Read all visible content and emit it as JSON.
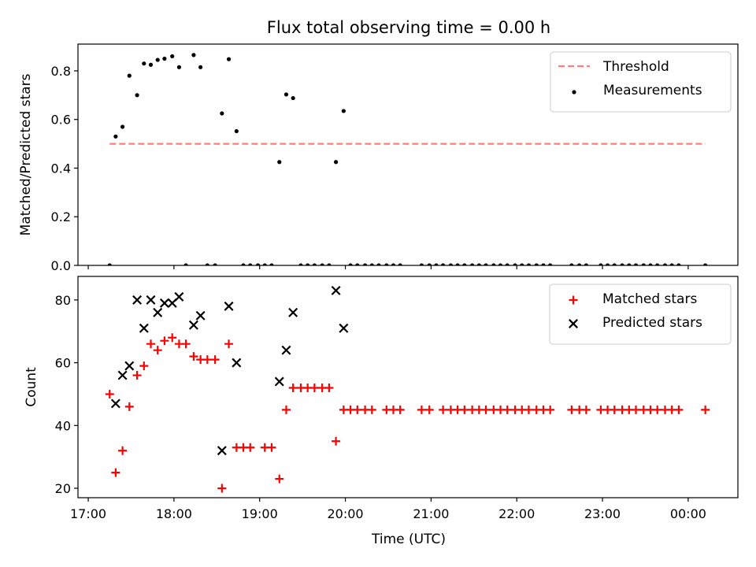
{
  "chart_data": {
    "title": "Flux total observing time = 0.00 h",
    "xlabel": "Time (UTC)",
    "x_unit": "hours since 17:00 UTC",
    "xlim": [
      -0.12,
      7.58
    ],
    "xticks": [
      {
        "v": 0,
        "label": "17:00"
      },
      {
        "v": 1,
        "label": "18:00"
      },
      {
        "v": 2,
        "label": "19:00"
      },
      {
        "v": 3,
        "label": "20:00"
      },
      {
        "v": 4,
        "label": "21:00"
      },
      {
        "v": 5,
        "label": "22:00"
      },
      {
        "v": 6,
        "label": "23:00"
      },
      {
        "v": 7,
        "label": "00:00"
      }
    ],
    "panels": [
      {
        "id": "ratio",
        "type": "scatter",
        "ylabel": "Matched/Predicted stars",
        "ylim": [
          0,
          0.91
        ],
        "yticks": [
          {
            "v": 0,
            "label": "0.0"
          },
          {
            "v": 0.2,
            "label": "0.2"
          },
          {
            "v": 0.4,
            "label": "0.4"
          },
          {
            "v": 0.6,
            "label": "0.6"
          },
          {
            "v": 0.8,
            "label": "0.8"
          }
        ],
        "legend": [
          "Threshold",
          "Measurements"
        ],
        "legend_loc": "upper right",
        "threshold": {
          "name": "Threshold",
          "y": 0.5,
          "x": [
            0.25,
            7.2
          ],
          "color": "#ff7f7f"
        },
        "series": [
          {
            "name": "Measurements",
            "marker": "dot",
            "color": "#000000",
            "points": [
              [
                0.25,
                0.0
              ],
              [
                0.32,
                0.53
              ],
              [
                0.4,
                0.57
              ],
              [
                0.48,
                0.78
              ],
              [
                0.57,
                0.7
              ],
              [
                0.65,
                0.83
              ],
              [
                0.73,
                0.825
              ],
              [
                0.81,
                0.845
              ],
              [
                0.89,
                0.85
              ],
              [
                0.98,
                0.86
              ],
              [
                1.06,
                0.815
              ],
              [
                1.14,
                0.0
              ],
              [
                1.23,
                0.865
              ],
              [
                1.31,
                0.815
              ],
              [
                1.39,
                0.0
              ],
              [
                1.48,
                0.0
              ],
              [
                1.56,
                0.625
              ],
              [
                1.64,
                0.848
              ],
              [
                1.73,
                0.552
              ],
              [
                1.81,
                0.0
              ],
              [
                1.89,
                0.0
              ],
              [
                1.98,
                0.0
              ],
              [
                2.06,
                0.0
              ],
              [
                2.14,
                0.0
              ],
              [
                2.23,
                0.425
              ],
              [
                2.31,
                0.703
              ],
              [
                2.39,
                0.688
              ],
              [
                2.48,
                0.0
              ],
              [
                2.56,
                0.0
              ],
              [
                2.64,
                0.0
              ],
              [
                2.73,
                0.0
              ],
              [
                2.81,
                0.0
              ],
              [
                2.89,
                0.425
              ],
              [
                2.98,
                0.635
              ],
              [
                3.06,
                0.0
              ],
              [
                3.14,
                0.0
              ],
              [
                3.23,
                0.0
              ],
              [
                3.31,
                0.0
              ],
              [
                3.39,
                0.0
              ],
              [
                3.48,
                0.0
              ],
              [
                3.56,
                0.0
              ],
              [
                3.64,
                0.0
              ],
              [
                3.89,
                0.0
              ],
              [
                3.98,
                0.0
              ],
              [
                4.06,
                0.0
              ],
              [
                4.14,
                0.0
              ],
              [
                4.23,
                0.0
              ],
              [
                4.31,
                0.0
              ],
              [
                4.39,
                0.0
              ],
              [
                4.48,
                0.0
              ],
              [
                4.56,
                0.0
              ],
              [
                4.64,
                0.0
              ],
              [
                4.73,
                0.0
              ],
              [
                4.81,
                0.0
              ],
              [
                4.89,
                0.0
              ],
              [
                4.98,
                0.0
              ],
              [
                5.06,
                0.0
              ],
              [
                5.14,
                0.0
              ],
              [
                5.23,
                0.0
              ],
              [
                5.31,
                0.0
              ],
              [
                5.39,
                0.0
              ],
              [
                5.64,
                0.0
              ],
              [
                5.73,
                0.0
              ],
              [
                5.81,
                0.0
              ],
              [
                5.98,
                0.0
              ],
              [
                6.06,
                0.0
              ],
              [
                6.14,
                0.0
              ],
              [
                6.23,
                0.0
              ],
              [
                6.31,
                0.0
              ],
              [
                6.39,
                0.0
              ],
              [
                6.48,
                0.0
              ],
              [
                6.56,
                0.0
              ],
              [
                6.64,
                0.0
              ],
              [
                6.73,
                0.0
              ],
              [
                6.81,
                0.0
              ],
              [
                6.89,
                0.0
              ],
              [
                7.2,
                0.0
              ]
            ]
          }
        ]
      },
      {
        "id": "counts",
        "type": "scatter",
        "ylabel": "Count",
        "ylim": [
          17,
          87.5
        ],
        "yticks": [
          {
            "v": 20,
            "label": "20"
          },
          {
            "v": 40,
            "label": "40"
          },
          {
            "v": 60,
            "label": "60"
          },
          {
            "v": 80,
            "label": "80"
          }
        ],
        "legend": [
          "Matched stars",
          "Predicted stars"
        ],
        "legend_loc": "upper right",
        "series": [
          {
            "name": "Matched stars",
            "marker": "plus",
            "color": "#ff0000",
            "points": [
              [
                0.25,
                50
              ],
              [
                0.32,
                25
              ],
              [
                0.4,
                32
              ],
              [
                0.48,
                46
              ],
              [
                0.57,
                56
              ],
              [
                0.65,
                59
              ],
              [
                0.73,
                66
              ],
              [
                0.81,
                64
              ],
              [
                0.89,
                67
              ],
              [
                0.98,
                68
              ],
              [
                1.06,
                66
              ],
              [
                1.14,
                66
              ],
              [
                1.23,
                62
              ],
              [
                1.31,
                61
              ],
              [
                1.39,
                61
              ],
              [
                1.48,
                61
              ],
              [
                1.56,
                20
              ],
              [
                1.64,
                66
              ],
              [
                1.73,
                33
              ],
              [
                1.81,
                33
              ],
              [
                1.89,
                33
              ],
              [
                2.06,
                33
              ],
              [
                2.14,
                33
              ],
              [
                2.23,
                23
              ],
              [
                2.31,
                45
              ],
              [
                2.39,
                52
              ],
              [
                2.48,
                52
              ],
              [
                2.56,
                52
              ],
              [
                2.64,
                52
              ],
              [
                2.73,
                52
              ],
              [
                2.81,
                52
              ],
              [
                2.89,
                35
              ],
              [
                2.98,
                45
              ],
              [
                3.06,
                45
              ],
              [
                3.14,
                45
              ],
              [
                3.23,
                45
              ],
              [
                3.31,
                45
              ],
              [
                3.48,
                45
              ],
              [
                3.56,
                45
              ],
              [
                3.64,
                45
              ],
              [
                3.89,
                45
              ],
              [
                3.98,
                45
              ],
              [
                4.14,
                45
              ],
              [
                4.23,
                45
              ],
              [
                4.31,
                45
              ],
              [
                4.39,
                45
              ],
              [
                4.48,
                45
              ],
              [
                4.56,
                45
              ],
              [
                4.64,
                45
              ],
              [
                4.73,
                45
              ],
              [
                4.81,
                45
              ],
              [
                4.89,
                45
              ],
              [
                4.98,
                45
              ],
              [
                5.06,
                45
              ],
              [
                5.14,
                45
              ],
              [
                5.23,
                45
              ],
              [
                5.31,
                45
              ],
              [
                5.39,
                45
              ],
              [
                5.64,
                45
              ],
              [
                5.73,
                45
              ],
              [
                5.81,
                45
              ],
              [
                5.98,
                45
              ],
              [
                6.06,
                45
              ],
              [
                6.14,
                45
              ],
              [
                6.23,
                45
              ],
              [
                6.31,
                45
              ],
              [
                6.39,
                45
              ],
              [
                6.48,
                45
              ],
              [
                6.56,
                45
              ],
              [
                6.64,
                45
              ],
              [
                6.73,
                45
              ],
              [
                6.81,
                45
              ],
              [
                6.89,
                45
              ],
              [
                7.2,
                45
              ]
            ]
          },
          {
            "name": "Predicted stars",
            "marker": "x",
            "color": "#000000",
            "points": [
              [
                0.32,
                47
              ],
              [
                0.4,
                56
              ],
              [
                0.48,
                59
              ],
              [
                0.57,
                80
              ],
              [
                0.65,
                71
              ],
              [
                0.73,
                80
              ],
              [
                0.81,
                76
              ],
              [
                0.89,
                79
              ],
              [
                0.98,
                79
              ],
              [
                1.06,
                81
              ],
              [
                1.23,
                72
              ],
              [
                1.31,
                75
              ],
              [
                1.56,
                32
              ],
              [
                1.64,
                78
              ],
              [
                1.73,
                60
              ],
              [
                2.23,
                54
              ],
              [
                2.31,
                64
              ],
              [
                2.39,
                76
              ],
              [
                2.89,
                83
              ],
              [
                2.98,
                71
              ]
            ]
          }
        ]
      }
    ]
  }
}
